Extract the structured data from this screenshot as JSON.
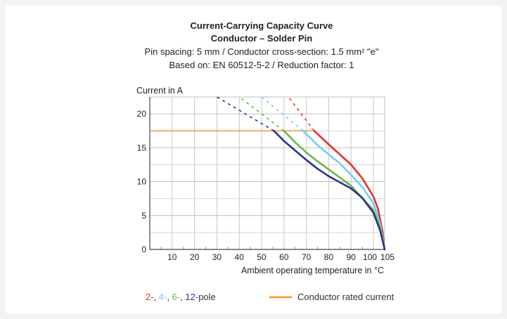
{
  "chart_data": {
    "type": "line",
    "title": "Current-Carrying Capacity Curve",
    "subtitle": "Conductor – Solder Pin",
    "info_line_1": "Pin spacing: 5 mm / Conductor cross-section: 1.5 mm² \"e\"",
    "info_line_2": "Based on: EN 60512-5-2 / Reduction factor: 1",
    "xlabel": "Ambient operating temperature in °C",
    "ylabel": "Current in A",
    "xlim": [
      0,
      105
    ],
    "ylim": [
      0,
      22.5
    ],
    "x_ticks": [
      "10",
      "20",
      "30",
      "40",
      "50",
      "60",
      "70",
      "80",
      "90",
      "100",
      "105"
    ],
    "x_tick_values": [
      10,
      20,
      30,
      40,
      50,
      60,
      70,
      80,
      90,
      100,
      105
    ],
    "y_ticks": [
      "0",
      "5",
      "10",
      "15",
      "20"
    ],
    "y_tick_values": [
      0,
      5,
      10,
      15,
      20
    ],
    "grid": true,
    "rated_current": {
      "label": "Conductor rated current",
      "value": 17.5,
      "x_end": 74,
      "color": "#f7941d"
    },
    "series": [
      {
        "name": "2-",
        "color": "#e63329",
        "dashed": [
          [
            73.5,
            17.5
          ],
          [
            62,
            22.5
          ]
        ],
        "solid": [
          [
            73.5,
            17.5
          ],
          [
            80,
            15.5
          ],
          [
            85,
            14.0
          ],
          [
            90,
            12.5
          ],
          [
            95,
            10.5
          ],
          [
            100,
            7.8
          ],
          [
            102,
            6.0
          ],
          [
            104,
            2.8
          ],
          [
            105,
            0
          ]
        ]
      },
      {
        "name": "4-",
        "color": "#6dcff6",
        "dashed": [
          [
            68.5,
            17.5
          ],
          [
            50,
            22.5
          ]
        ],
        "solid": [
          [
            68.5,
            17.5
          ],
          [
            75,
            15.4
          ],
          [
            80,
            14.0
          ],
          [
            85,
            12.7
          ],
          [
            90,
            11.0
          ],
          [
            95,
            9.2
          ],
          [
            100,
            6.8
          ],
          [
            103,
            3.8
          ],
          [
            105,
            0
          ]
        ]
      },
      {
        "name": "6-",
        "color": "#65bc46",
        "dashed": [
          [
            60,
            17.5
          ],
          [
            40,
            22.5
          ]
        ],
        "solid": [
          [
            60,
            17.5
          ],
          [
            65,
            15.8
          ],
          [
            70,
            14.3
          ],
          [
            75,
            13.0
          ],
          [
            80,
            11.8
          ],
          [
            85,
            10.6
          ],
          [
            90,
            9.4
          ],
          [
            95,
            7.6
          ],
          [
            100,
            5.8
          ],
          [
            103,
            3.2
          ],
          [
            105,
            0
          ]
        ]
      },
      {
        "name": "12-",
        "color": "#2e3191",
        "dashed": [
          [
            55.5,
            17.5
          ],
          [
            30,
            22.5
          ]
        ],
        "solid": [
          [
            55.5,
            17.5
          ],
          [
            60,
            16.0
          ],
          [
            65,
            14.6
          ],
          [
            70,
            13.2
          ],
          [
            75,
            11.9
          ],
          [
            80,
            10.8
          ],
          [
            85,
            9.9
          ],
          [
            90,
            9.0
          ],
          [
            95,
            7.6
          ],
          [
            100,
            5.4
          ],
          [
            103,
            2.8
          ],
          [
            105,
            0
          ]
        ]
      }
    ],
    "legend": {
      "suffix": "pole",
      "placement": "bottom"
    }
  }
}
